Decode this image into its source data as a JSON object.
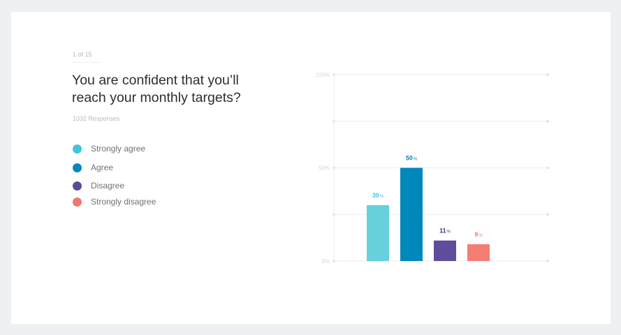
{
  "survey": {
    "counter": "1 of 15",
    "question": "You are confident that you’ll reach your monthly targets?",
    "responses": "1032 Responses"
  },
  "legend": [
    {
      "label": "Strongly agree",
      "color": "#3fc6db"
    },
    {
      "label": "Agree",
      "color": "#0a86b8"
    },
    {
      "label": "Disagree",
      "color": "#5c4a98"
    },
    {
      "label": "Strongly disagree",
      "color": "#f0786e"
    }
  ],
  "chart_data": {
    "type": "bar",
    "categories": [
      "Strongly agree",
      "Agree",
      "Disagree",
      "Strongly disagree"
    ],
    "values": [
      30,
      50,
      11,
      9
    ],
    "data_labels": [
      "30",
      "50",
      "11",
      "9"
    ],
    "label_unit": "%",
    "bar_colors": [
      "#66d0dd",
      "#0087bc",
      "#5f4c9b",
      "#f47d73"
    ],
    "label_colors": [
      "#3fc6db",
      "#0a86b8",
      "#3f3a72",
      "#f0786e"
    ],
    "ylim": [
      0,
      100
    ],
    "yticks": [
      0,
      50,
      100
    ],
    "ytick_labels": [
      "0%",
      "50%",
      "100%"
    ],
    "gridlines": [
      0,
      25,
      50,
      75,
      100
    ],
    "grid": true
  }
}
